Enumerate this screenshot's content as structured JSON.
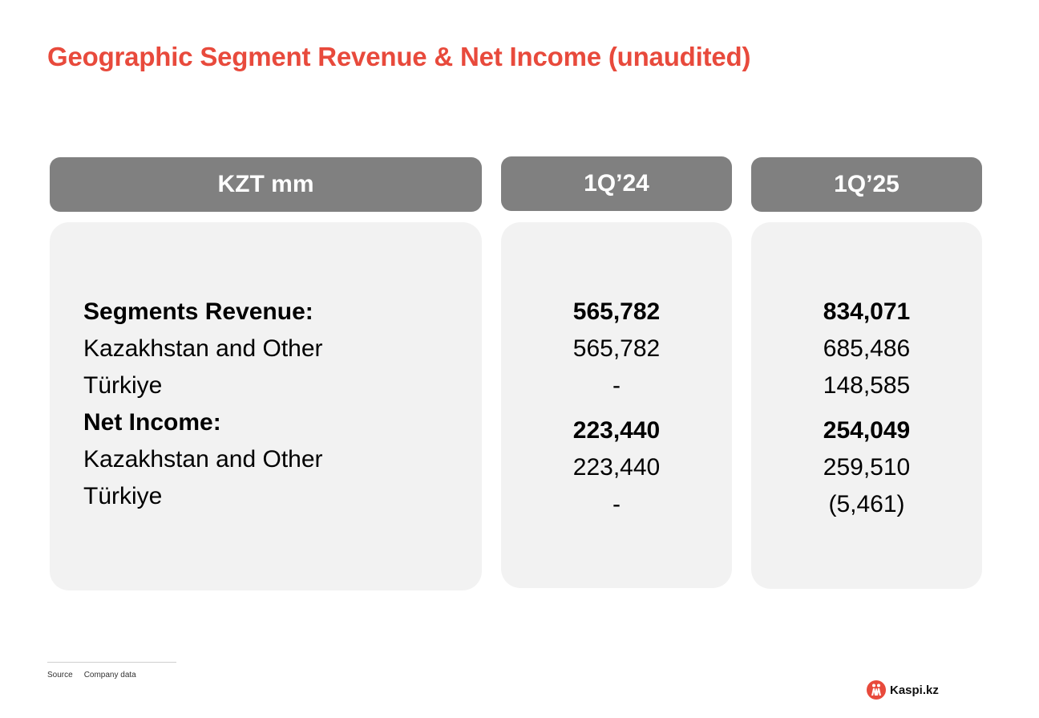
{
  "title": "Geographic Segment Revenue & Net Income (unaudited)",
  "headers": {
    "unit": "KZT mm",
    "period1": "1Q’24",
    "period2": "1Q’25"
  },
  "rows": [
    {
      "label": "Segments Revenue:",
      "q24": "565,782",
      "q25": "834,071",
      "bold": true
    },
    {
      "label": "Kazakhstan and Other",
      "q24": "565,782",
      "q25": "685,486",
      "bold": false
    },
    {
      "label": "Türkiye",
      "q24": "-",
      "q25": "148,585",
      "bold": false
    },
    {
      "label": "Net Income:",
      "q24": "223,440",
      "q25": "254,049",
      "bold": true
    },
    {
      "label": "Kazakhstan and Other",
      "q24": "223,440",
      "q25": "259,510",
      "bold": false
    },
    {
      "label": "Türkiye",
      "q24": "-",
      "q25": "(5,461)",
      "bold": false
    }
  ],
  "footer": {
    "source_label": "Source",
    "source_value": "Company data"
  },
  "logo": {
    "text": "Kaspi.kz",
    "icon": "kaspi-logo-icon"
  },
  "colors": {
    "accent": "#e84a3c",
    "header_bg": "#808080",
    "panel_bg": "#f2f2f2"
  }
}
